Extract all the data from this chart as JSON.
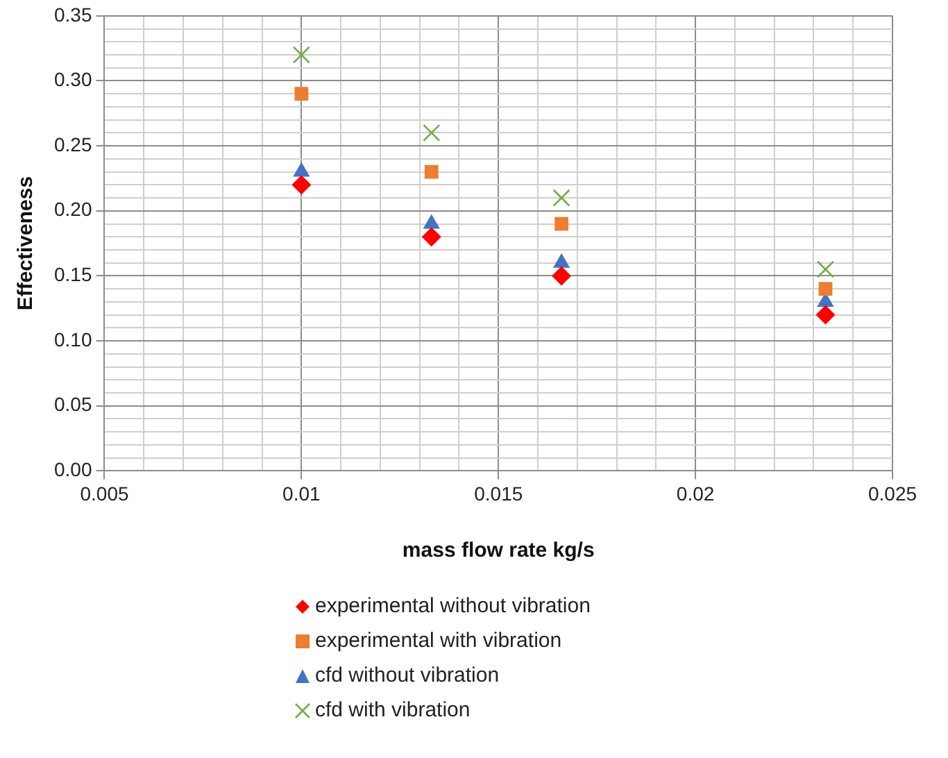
{
  "chart_data": {
    "type": "scatter",
    "xlabel": "mass flow rate kg/s",
    "ylabel": "Effectiveness",
    "x": [
      0.01,
      0.0133,
      0.0166,
      0.0233
    ],
    "series": [
      {
        "name": "experimental without vibration",
        "color": "#ff0000",
        "marker": "diamond",
        "values": [
          0.22,
          0.18,
          0.15,
          0.12
        ]
      },
      {
        "name": "experimental with vibration",
        "color": "#ed7d31",
        "marker": "square",
        "values": [
          0.29,
          0.23,
          0.19,
          0.14
        ]
      },
      {
        "name": "cfd without vibration",
        "color": "#4472c4",
        "marker": "triangle",
        "values": [
          0.23,
          0.19,
          0.16,
          0.13
        ]
      },
      {
        "name": "cfd with vibration",
        "color": "#70ad47",
        "marker": "cross",
        "values": [
          0.32,
          0.26,
          0.21,
          0.155
        ]
      }
    ],
    "xlim": [
      0.005,
      0.025
    ],
    "xticks": [
      0.005,
      {
        "value": 0.006,
        "label": null
      },
      {
        "value": 0.007,
        "label": null
      },
      {
        "value": 0.008,
        "label": null
      },
      {
        "value": 0.009,
        "label": null
      },
      0.01,
      {
        "value": 0.011,
        "label": null
      },
      {
        "value": 0.012,
        "label": null
      },
      {
        "value": 0.013,
        "label": null
      },
      {
        "value": 0.014,
        "label": null
      },
      0.015,
      {
        "value": 0.016,
        "label": null
      },
      {
        "value": 0.017,
        "label": null
      },
      {
        "value": 0.018,
        "label": null
      },
      {
        "value": 0.019,
        "label": null
      },
      0.02,
      {
        "value": 0.021,
        "label": null
      },
      {
        "value": 0.022,
        "label": null
      },
      {
        "value": 0.023,
        "label": null
      },
      {
        "value": 0.024,
        "label": null
      },
      0.025
    ],
    "ylim": [
      0,
      0.35
    ],
    "yticks": [
      {
        "value": 0,
        "label": "0.00"
      },
      {
        "value": 0.01,
        "label": null
      },
      {
        "value": 0.02,
        "label": null
      },
      {
        "value": 0.03,
        "label": null
      },
      {
        "value": 0.04,
        "label": null
      },
      {
        "value": 0.05,
        "label": "0.05"
      },
      {
        "value": 0.06,
        "label": null
      },
      {
        "value": 0.07,
        "label": null
      },
      {
        "value": 0.08,
        "label": null
      },
      {
        "value": 0.09,
        "label": null
      },
      {
        "value": 0.1,
        "label": "0.10"
      },
      {
        "value": 0.11,
        "label": null
      },
      {
        "value": 0.12,
        "label": null
      },
      {
        "value": 0.13,
        "label": null
      },
      {
        "value": 0.14,
        "label": null
      },
      {
        "value": 0.15,
        "label": "0.15"
      },
      {
        "value": 0.16,
        "label": null
      },
      {
        "value": 0.17,
        "label": null
      },
      {
        "value": 0.18,
        "label": null
      },
      {
        "value": 0.19,
        "label": null
      },
      {
        "value": 0.2,
        "label": "0.20"
      },
      {
        "value": 0.21,
        "label": null
      },
      {
        "value": 0.22,
        "label": null
      },
      {
        "value": 0.23,
        "label": null
      },
      {
        "value": 0.24,
        "label": null
      },
      {
        "value": 0.25,
        "label": "0.25"
      },
      {
        "value": 0.26,
        "label": null
      },
      {
        "value": 0.27,
        "label": null
      },
      {
        "value": 0.28,
        "label": null
      },
      {
        "value": 0.29,
        "label": null
      },
      {
        "value": 0.3,
        "label": "0.30"
      },
      {
        "value": 0.31,
        "label": null
      },
      {
        "value": 0.32,
        "label": null
      },
      {
        "value": 0.33,
        "label": null
      },
      {
        "value": 0.34,
        "label": null
      },
      {
        "value": 0.35,
        "label": "0.35"
      }
    ],
    "grid": true,
    "legend": "bottom"
  }
}
